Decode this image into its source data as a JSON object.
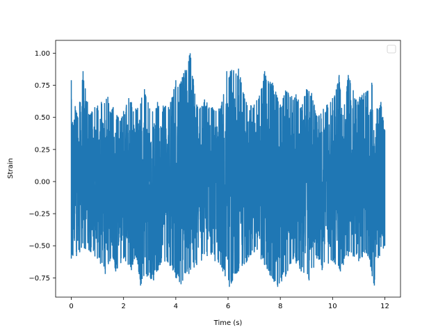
{
  "chart_data": {
    "type": "line",
    "title": "",
    "xlabel": "Time (s)",
    "ylabel": "Strain",
    "xlim": [
      -0.6,
      12.6
    ],
    "ylim": [
      -0.9,
      1.1
    ],
    "x_ticks": [
      0,
      2,
      4,
      6,
      8,
      10,
      12
    ],
    "y_ticks": [
      -0.75,
      -0.5,
      -0.25,
      0.0,
      0.25,
      0.5,
      0.75,
      1.0
    ],
    "x_tick_labels": [
      "0",
      "2",
      "4",
      "6",
      "8",
      "10",
      "12"
    ],
    "y_tick_labels": [
      "−0.75",
      "−0.50",
      "−0.25",
      "0.00",
      "0.25",
      "0.50",
      "0.75",
      "1.00"
    ],
    "grid": false,
    "legend": {
      "placement": "top-right",
      "entries": []
    },
    "series_color": "#1f77b4",
    "series": [
      {
        "x_range": [
          0,
          12
        ],
        "upper_envelope": [
          [
            0.0,
            0.79
          ],
          [
            0.25,
            0.5
          ],
          [
            0.45,
            0.86
          ],
          [
            0.7,
            0.52
          ],
          [
            0.9,
            0.58
          ],
          [
            1.15,
            0.62
          ],
          [
            1.4,
            0.66
          ],
          [
            1.5,
            0.54
          ],
          [
            1.6,
            0.58
          ],
          [
            1.8,
            0.5
          ],
          [
            2.0,
            0.55
          ],
          [
            2.2,
            0.65
          ],
          [
            2.5,
            0.56
          ],
          [
            2.8,
            0.72
          ],
          [
            3.0,
            0.57
          ],
          [
            3.3,
            0.62
          ],
          [
            3.6,
            0.59
          ],
          [
            3.8,
            0.62
          ],
          [
            4.0,
            0.79
          ],
          [
            4.2,
            0.78
          ],
          [
            4.55,
            1.0
          ],
          [
            4.8,
            0.6
          ],
          [
            5.1,
            0.64
          ],
          [
            5.4,
            0.58
          ],
          [
            5.7,
            0.57
          ],
          [
            5.95,
            0.86
          ],
          [
            6.4,
            0.88
          ],
          [
            6.7,
            0.62
          ],
          [
            7.0,
            0.6
          ],
          [
            7.2,
            0.67
          ],
          [
            7.4,
            0.86
          ],
          [
            7.7,
            0.77
          ],
          [
            8.0,
            0.6
          ],
          [
            8.2,
            0.71
          ],
          [
            8.6,
            0.68
          ],
          [
            8.8,
            0.58
          ],
          [
            9.0,
            0.72
          ],
          [
            9.2,
            0.69
          ],
          [
            9.4,
            0.51
          ],
          [
            9.8,
            0.6
          ],
          [
            10.0,
            0.65
          ],
          [
            10.25,
            0.83
          ],
          [
            10.4,
            0.52
          ],
          [
            10.6,
            0.83
          ],
          [
            10.9,
            0.64
          ],
          [
            11.2,
            0.69
          ],
          [
            11.5,
            0.77
          ],
          [
            11.7,
            0.57
          ],
          [
            11.85,
            0.62
          ],
          [
            12.0,
            0.4
          ]
        ],
        "lower_envelope": [
          [
            0.0,
            -0.6
          ],
          [
            0.2,
            -0.58
          ],
          [
            0.5,
            -0.52
          ],
          [
            0.75,
            -0.55
          ],
          [
            1.0,
            -0.6
          ],
          [
            1.3,
            -0.72
          ],
          [
            1.6,
            -0.6
          ],
          [
            1.7,
            -0.7
          ],
          [
            2.0,
            -0.6
          ],
          [
            2.3,
            -0.69
          ],
          [
            2.5,
            -0.58
          ],
          [
            2.65,
            -0.81
          ],
          [
            2.9,
            -0.74
          ],
          [
            3.15,
            -0.77
          ],
          [
            3.4,
            -0.65
          ],
          [
            3.7,
            -0.63
          ],
          [
            4.0,
            -0.75
          ],
          [
            4.2,
            -0.8
          ],
          [
            4.5,
            -0.72
          ],
          [
            4.8,
            -0.65
          ],
          [
            5.2,
            -0.58
          ],
          [
            5.5,
            -0.62
          ],
          [
            5.8,
            -0.7
          ],
          [
            6.05,
            -0.82
          ],
          [
            6.4,
            -0.7
          ],
          [
            6.7,
            -0.63
          ],
          [
            7.0,
            -0.55
          ],
          [
            7.4,
            -0.65
          ],
          [
            7.6,
            -0.73
          ],
          [
            7.9,
            -0.82
          ],
          [
            8.2,
            -0.74
          ],
          [
            8.5,
            -0.6
          ],
          [
            8.8,
            -0.7
          ],
          [
            9.1,
            -0.77
          ],
          [
            9.4,
            -0.6
          ],
          [
            9.6,
            -0.69
          ],
          [
            10.0,
            -0.62
          ],
          [
            10.3,
            -0.7
          ],
          [
            10.6,
            -0.58
          ],
          [
            11.0,
            -0.62
          ],
          [
            11.3,
            -0.56
          ],
          [
            11.6,
            -0.81
          ],
          [
            11.8,
            -0.58
          ],
          [
            12.0,
            -0.5
          ]
        ]
      }
    ]
  }
}
